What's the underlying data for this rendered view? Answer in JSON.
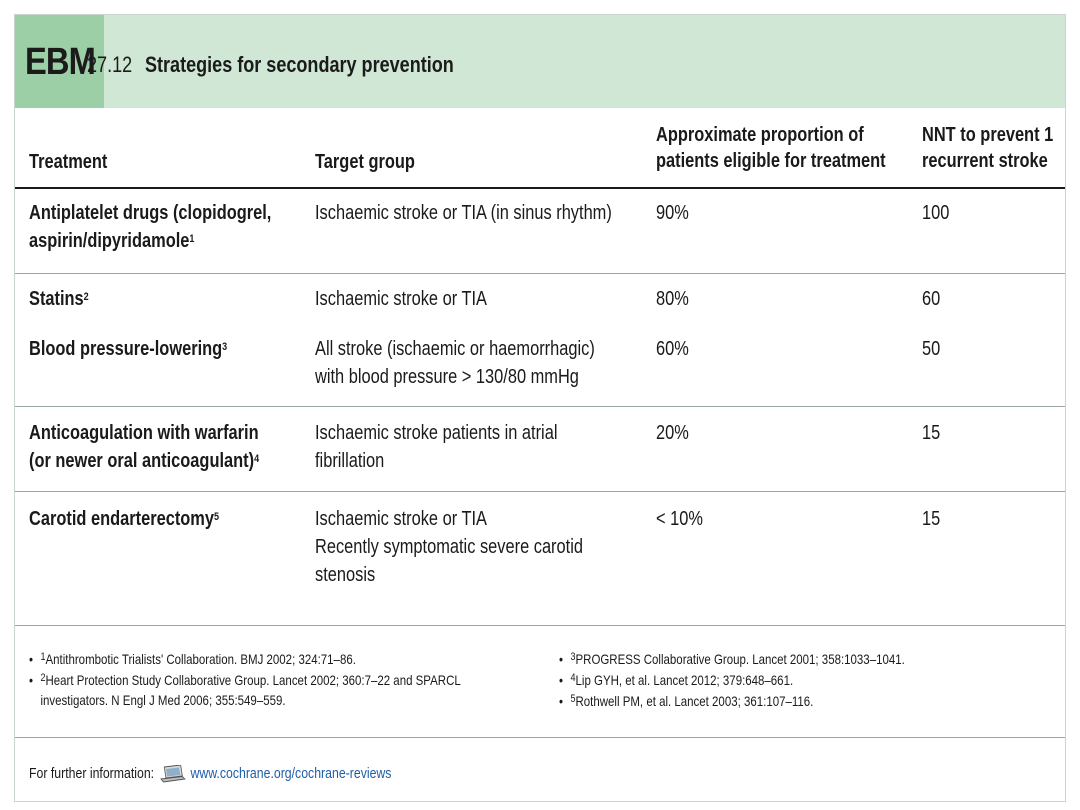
{
  "header": {
    "badge": "EBM",
    "number": "27.12",
    "title": "Strategies for secondary prevention"
  },
  "columns": [
    {
      "lines": [
        "Treatment"
      ]
    },
    {
      "lines": [
        "Target group"
      ]
    },
    {
      "lines": [
        "Approximate proportion of",
        "patients eligible for treatment"
      ]
    },
    {
      "lines": [
        "NNT to prevent 1",
        "recurrent stroke"
      ]
    }
  ],
  "rows": [
    {
      "treatment": [
        "Antiplatelet drugs (clopidogrel,",
        "aspirin/dipyridamole"
      ],
      "treatment_sup": "1",
      "target": [
        "Ischaemic stroke or TIA (in sinus rhythm)"
      ],
      "proportion": "90%",
      "nnt": "100"
    },
    {
      "treatment": [
        "Statins"
      ],
      "treatment_sup": "2",
      "target": [
        "Ischaemic stroke or TIA"
      ],
      "proportion": "80%",
      "nnt": "60"
    },
    {
      "treatment": [
        "Blood pressure-lowering"
      ],
      "treatment_sup": "3",
      "target": [
        "All stroke (ischaemic or haemorrhagic)",
        "with blood pressure > 130/80 mmHg"
      ],
      "proportion": "60%",
      "nnt": "50"
    },
    {
      "treatment": [
        "Anticoagulation with warfarin",
        "(or newer oral anticoagulant)"
      ],
      "treatment_sup": "4",
      "target": [
        "Ischaemic stroke patients in atrial",
        "fibrillation"
      ],
      "proportion": "20%",
      "nnt": "15"
    },
    {
      "treatment": [
        "Carotid endarterectomy"
      ],
      "treatment_sup": "5",
      "target": [
        "Ischaemic stroke or TIA",
        "Recently symptomatic severe carotid",
        "stenosis"
      ],
      "proportion": "< 10%",
      "nnt": "15"
    }
  ],
  "footnotes_left": [
    {
      "num": "1",
      "text": [
        "Antithrombotic Trialists' Collaboration. BMJ 2002; 324:71–86."
      ]
    },
    {
      "num": "2",
      "text": [
        "Heart Protection Study Collaborative Group. Lancet 2002; 360:7–22 and SPARCL",
        "investigators. N Engl J Med 2006; 355:549–559."
      ]
    }
  ],
  "footnotes_right": [
    {
      "num": "3",
      "text": [
        "PROGRESS Collaborative Group. Lancet 2001; 358:1033–1041."
      ]
    },
    {
      "num": "4",
      "text": [
        "Lip GYH, et al. Lancet 2012; 379:648–661."
      ]
    },
    {
      "num": "5",
      "text": [
        "Rothwell PM, et al. Lancet 2003; 361:107–116."
      ]
    }
  ],
  "further": {
    "label": "For further information:",
    "icon": "laptop-icon",
    "link": "www.cochrane.org/cochrane-reviews"
  },
  "colors": {
    "header_bg": "#cfe7d4",
    "badge_bg": "#9ccfa6",
    "link": "#1f5ea8"
  }
}
